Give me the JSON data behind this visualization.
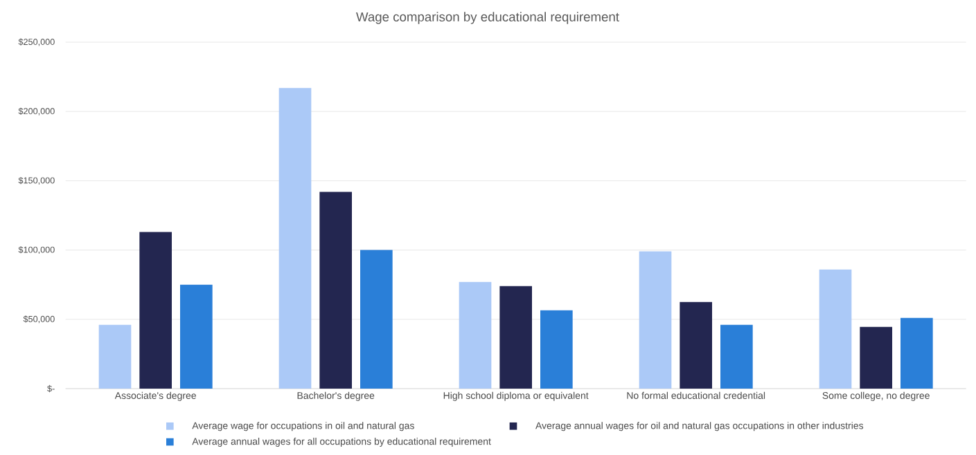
{
  "chart_data": {
    "type": "bar",
    "title": "Wage comparison by educational requirement",
    "categories": [
      "Associate's degree",
      "Bachelor's degree",
      "High school diploma or equivalent",
      "No formal educational credential",
      "Some college, no degree"
    ],
    "series": [
      {
        "name": "Average wage for occupations in oil and natural gas",
        "color": "#abc9f7",
        "values": [
          46000,
          217000,
          77000,
          99000,
          86000
        ]
      },
      {
        "name": "Average annual wages for oil and natural gas occupations in other industries",
        "color": "#232650",
        "values": [
          113000,
          142000,
          74000,
          62500,
          44500
        ]
      },
      {
        "name": "Average annual wages for all occupations by educational requirement",
        "color": "#2a7fd8",
        "values": [
          75000,
          100000,
          56500,
          46000,
          51000
        ]
      }
    ],
    "ylim": [
      0,
      250000
    ],
    "yticks": [
      {
        "value": 0,
        "label": "$-"
      },
      {
        "value": 50000,
        "label": "$50,000"
      },
      {
        "value": 100000,
        "label": "$100,000"
      },
      {
        "value": 150000,
        "label": "$150,000"
      },
      {
        "value": 200000,
        "label": "$200,000"
      },
      {
        "value": 250000,
        "label": "$250,000"
      }
    ],
    "grid": "y",
    "legend": "bottom"
  }
}
